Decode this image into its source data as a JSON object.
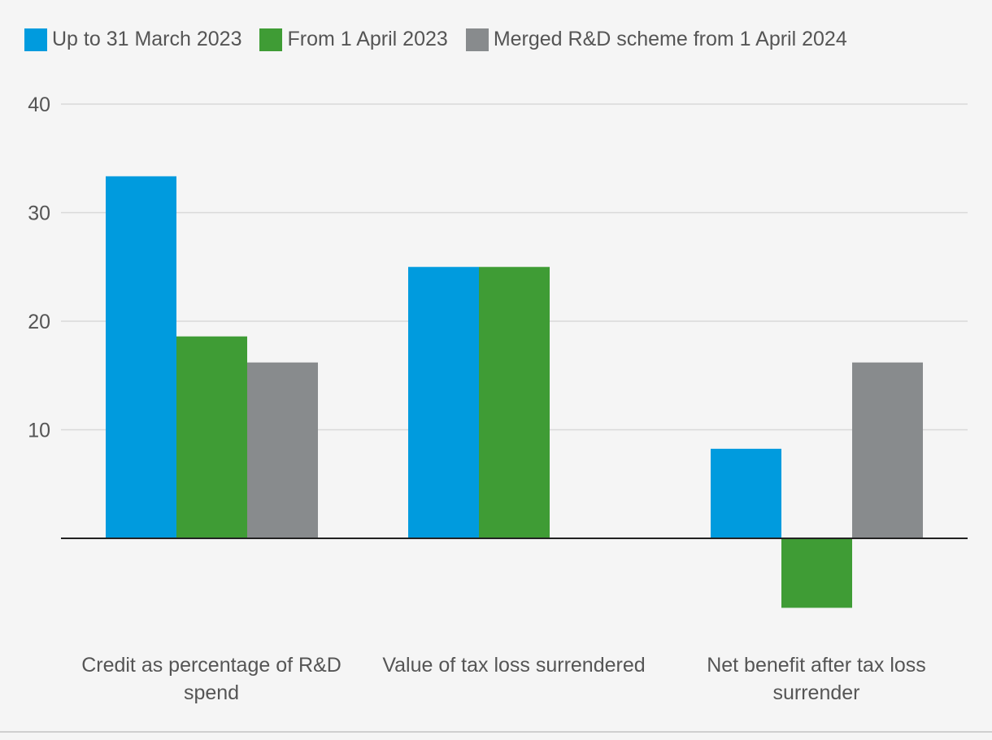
{
  "chart_data": {
    "type": "bar",
    "categories": [
      "Credit as percentage of R&D spend",
      "Value of tax loss surrendered",
      "Net benefit after tax loss surrender"
    ],
    "series": [
      {
        "name": "Up to 31 March 2023",
        "color": "#009bde",
        "values": [
          33.35,
          25,
          8.25
        ]
      },
      {
        "name": "From 1 April 2023",
        "color": "#3f9c35",
        "values": [
          18.6,
          25,
          -6.4
        ]
      },
      {
        "name": "Merged R&D scheme from 1 April 2024",
        "color": "#888b8d",
        "values": [
          16.2,
          null,
          16.2
        ]
      }
    ],
    "ylim": [
      -9,
      40
    ],
    "yticks": [
      "10",
      "20",
      "30",
      "40"
    ],
    "grid": true,
    "legend_position": "top-left"
  }
}
